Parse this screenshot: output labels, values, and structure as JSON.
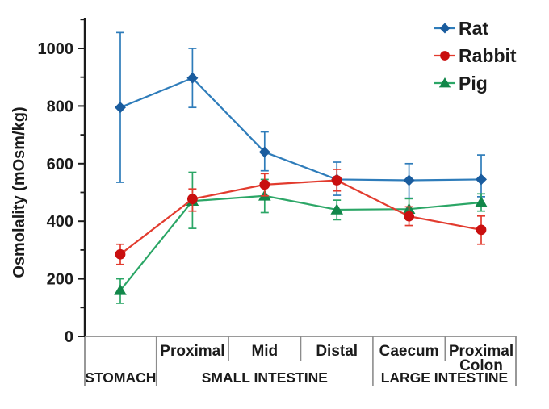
{
  "figure": {
    "background": "#ffffff",
    "axis_color": "#1b1b1b",
    "table_line_color": "#8c8c8c"
  },
  "chart_data": {
    "type": "line",
    "title": "",
    "ylabel": "Osmolality (mOsm/kg)",
    "xlabel": "",
    "ylim": [
      0,
      1100
    ],
    "yticks": [
      0,
      200,
      400,
      600,
      800,
      1000
    ],
    "yminorticks": [
      100,
      300,
      500,
      700,
      900,
      1100
    ],
    "grid": false,
    "legend_position": "top-right",
    "x_categories": [
      "Stomach",
      "Small intestine - Proximal",
      "Small intestine - Mid",
      "Small intestine - Distal",
      "Large intestine - Caecum",
      "Large intestine - Proximal colon"
    ],
    "segment_lines": [
      [],
      [
        "Proximal"
      ],
      [
        "Mid"
      ],
      [
        "Distal"
      ],
      [
        "Caecum"
      ],
      [
        "Proximal",
        "Colon"
      ]
    ],
    "x_groups": [
      {
        "label": "STOMACH",
        "span": [
          0,
          1
        ]
      },
      {
        "label": "SMALL INTESTINE",
        "span": [
          1,
          4
        ]
      },
      {
        "label": "LARGE INTESTINE",
        "span": [
          4,
          6
        ]
      }
    ],
    "series": [
      {
        "name": "Rat",
        "marker": "diamond",
        "z": 0,
        "line_color": "#2E7CBA",
        "marker_color": "#1A5C9E",
        "values": [
          795,
          897,
          640,
          545,
          542,
          545
        ],
        "err_lo": [
          535,
          795,
          575,
          490,
          480,
          485
        ],
        "err_hi": [
          1055,
          1000,
          710,
          605,
          600,
          630
        ]
      },
      {
        "name": "Rabbit",
        "marker": "circle",
        "z": 2,
        "line_color": "#E23B2E",
        "marker_color": "#C90F0F",
        "values": [
          285,
          477,
          527,
          542,
          417,
          370
        ],
        "err_lo": [
          250,
          435,
          488,
          505,
          385,
          320
        ],
        "err_hi": [
          320,
          512,
          565,
          580,
          450,
          418
        ]
      },
      {
        "name": "Pig",
        "marker": "triangle",
        "z": 1,
        "line_color": "#2BA666",
        "marker_color": "#12874A",
        "values": [
          160,
          470,
          488,
          440,
          442,
          465
        ],
        "err_lo": [
          115,
          375,
          430,
          405,
          410,
          435
        ],
        "err_hi": [
          200,
          570,
          545,
          473,
          478,
          495
        ]
      }
    ]
  }
}
